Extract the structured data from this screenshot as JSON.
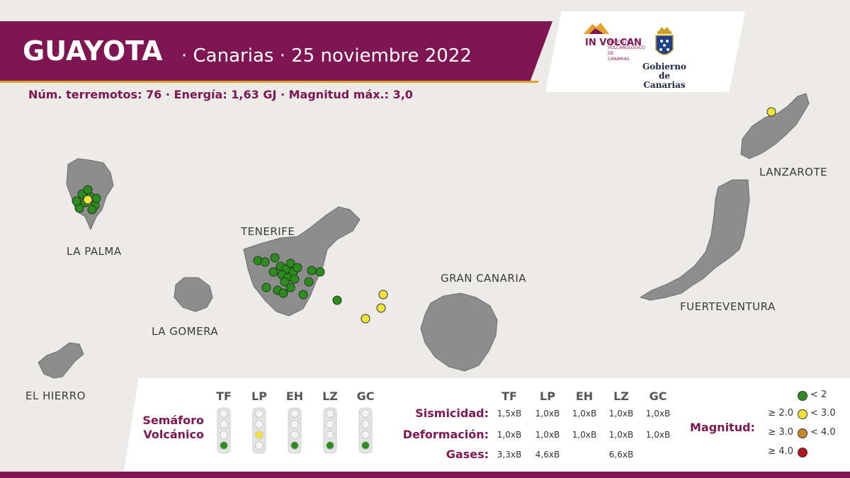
{
  "header": {
    "place": "GUAYOTA",
    "subtitle": "· Canarias · 25 noviembre 2022"
  },
  "stats_line": "Núm. terremotos: 76 · Energía: 1,63 GJ · Magnitud máx.: 3,0",
  "logos": {
    "involcan": "IN VOLCAN",
    "involcan_sub": "INSTITUTO VOLCANOLÓGICO DE CANARIAS",
    "gobierno": "Gobierno de Canarias"
  },
  "islands": {
    "la_palma": "LA PALMA",
    "tenerife": "TENERIFE",
    "la_gomera": "LA GOMERA",
    "el_hierro": "EL HIERRO",
    "gran_canaria": "GRAN CANARIA",
    "fuerteventura": "FUERTEVENTURA",
    "lanzarote": "LANZAROTE"
  },
  "colors": {
    "brand": "#7f1552",
    "accent": "#e3a22c",
    "mag_lt2": "#2e8b20",
    "mag_2_3": "#f2e33a",
    "mag_3_4": "#c8892a",
    "mag_ge4": "#b01620"
  },
  "semaforo": {
    "label_line1": "Semáforo",
    "label_line2": "Volcánico",
    "islands": [
      {
        "code": "TF",
        "level": "verde"
      },
      {
        "code": "LP",
        "level": "amarillo"
      },
      {
        "code": "EH",
        "level": "verde"
      },
      {
        "code": "LZ",
        "level": "verde"
      },
      {
        "code": "GC",
        "level": "verde"
      }
    ]
  },
  "indicators": {
    "codes": [
      "TF",
      "LP",
      "EH",
      "LZ",
      "GC"
    ],
    "rows": [
      {
        "label": "Sismicidad:",
        "values": [
          "1,5xB",
          "1,0xB",
          "1,0xB",
          "1,0xB",
          "1,0xB"
        ]
      },
      {
        "label": "Deformación:",
        "values": [
          "1,0xB",
          "1,0xB",
          "1,0xB",
          "1,0xB",
          "1,0xB"
        ]
      },
      {
        "label": "Gases:",
        "values": [
          "3,3xB",
          "4,6xB",
          "",
          "6,6xB",
          ""
        ]
      }
    ]
  },
  "magnitude_legend": {
    "label": "Magnitud:",
    "classes": [
      {
        "lo": "",
        "hi": "< 2",
        "color": "#2e8b20"
      },
      {
        "lo": "≥ 2.0",
        "hi": "< 3.0",
        "color": "#f2e33a"
      },
      {
        "lo": "≥ 3.0",
        "hi": "< 4.0",
        "color": "#c8892a"
      },
      {
        "lo": "≥ 4.0",
        "hi": "",
        "color": "#b01620"
      }
    ]
  }
}
